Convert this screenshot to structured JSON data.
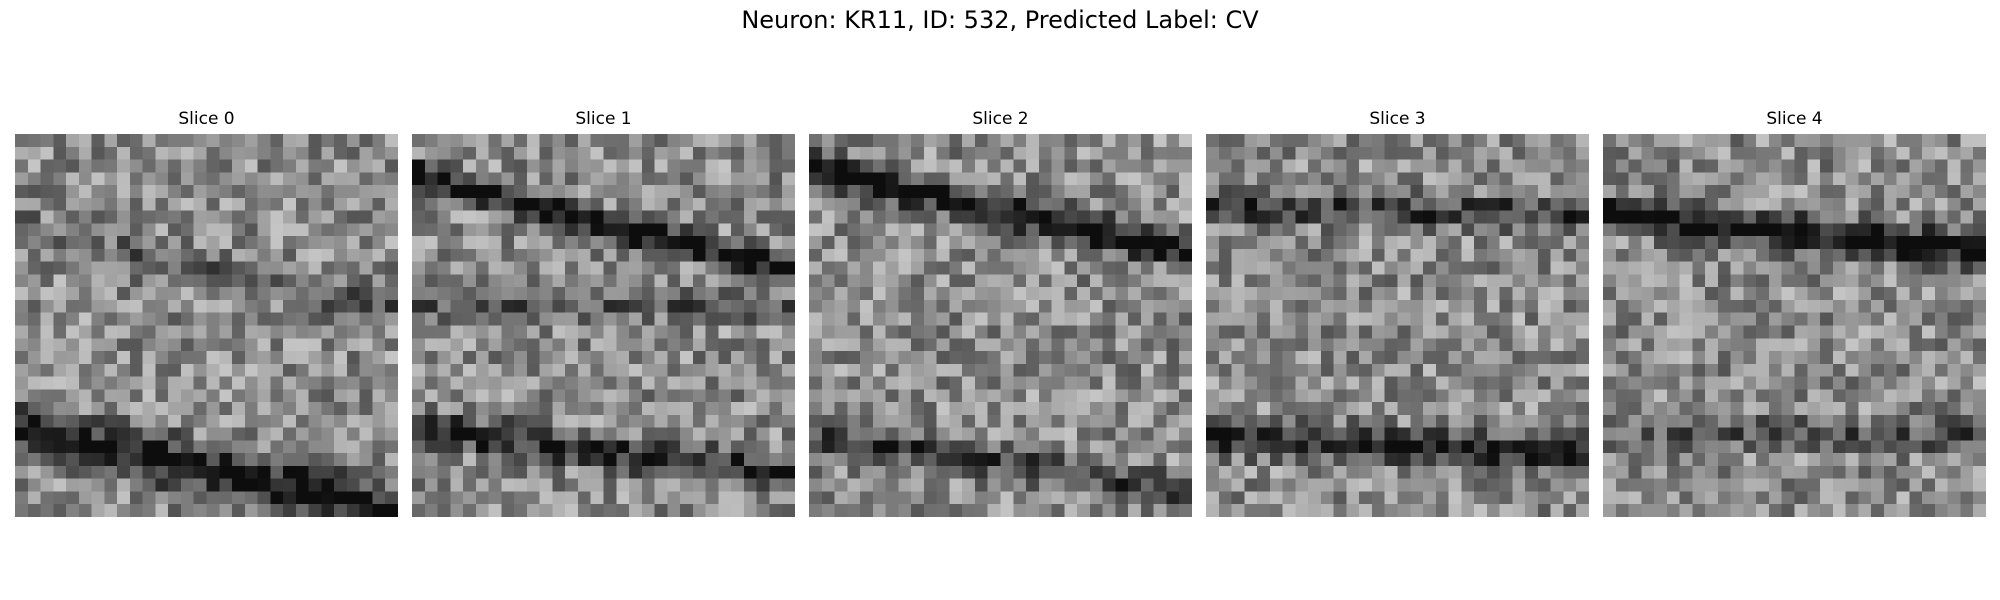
{
  "figure": {
    "title": "Neuron: KR11, ID: 532, Predicted Label: CV"
  },
  "colormap": "gray",
  "grid_size": 30,
  "slices": [
    {
      "title": "Slice 0",
      "seed": 11
    },
    {
      "title": "Slice 1",
      "seed": 23
    },
    {
      "title": "Slice 2",
      "seed": 37
    },
    {
      "title": "Slice 3",
      "seed": 53
    },
    {
      "title": "Slice 4",
      "seed": 71
    }
  ]
}
